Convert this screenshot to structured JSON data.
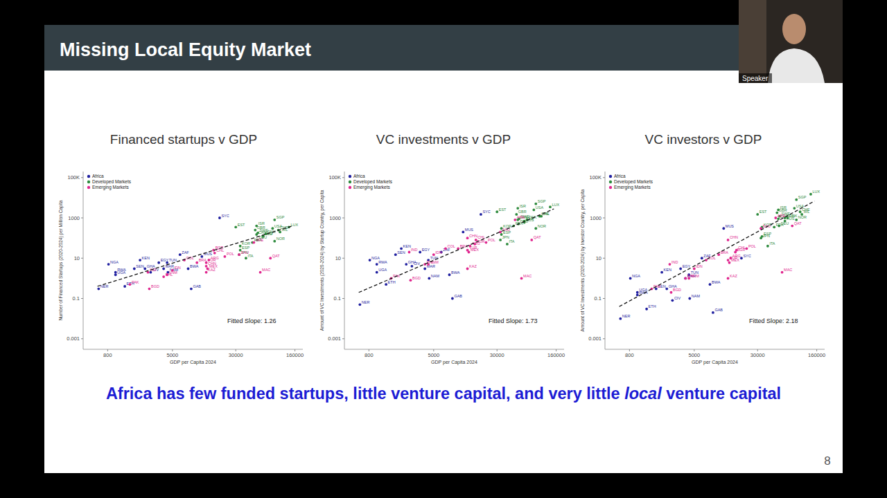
{
  "slide": {
    "title": "Missing Local Equity Market",
    "speaker_label": "Speaker",
    "page": 8,
    "takeaway": {
      "before": "Africa has few funded startups, little venture capital, and very little ",
      "emphasis": "local",
      "after": " venture capital"
    }
  },
  "chart_data": [
    {
      "type": "scatter",
      "title": "Financed startups v GDP",
      "x_label": "GDP per Capita 2024",
      "y_label": "Number of Financed Startups (2020-2024) per Million Capita",
      "log": true,
      "grid": false,
      "legend": "top-left",
      "xlim": [
        400,
        200000
      ],
      "xticks": [
        800,
        5000,
        30000,
        160000
      ],
      "ylim": [
        0.0003,
        200000
      ],
      "yticks": [
        0.001,
        0.1,
        10,
        1000,
        {
          "value": 100000,
          "label": "100K"
        }
      ],
      "annotation": "Fitted Slope: 1.26",
      "fit_line": {
        "x": [
          600,
          150000
        ],
        "y": [
          0.4,
          400
        ]
      },
      "series": [
        {
          "name": "Africa",
          "color": "#1f1fa0",
          "marker": "circle",
          "point_labels": [
            "NGA",
            "KEN",
            "SEN",
            "UGA",
            "RWA",
            "ETH",
            "NER",
            "GHA",
            "CIV",
            "MAR",
            "TUN",
            "EGY",
            "ZAF",
            "NAM",
            "MUS",
            "SYC",
            "BWA",
            "GAB"
          ],
          "x": [
            820,
            2000,
            1700,
            1000,
            1000,
            1300,
            620,
            2300,
            2700,
            3900,
            4300,
            3400,
            6200,
            4400,
            11500,
            19000,
            7800,
            8500
          ],
          "values": [
            5,
            8,
            3,
            1.5,
            2,
            0.4,
            0.3,
            3,
            2,
            3,
            6,
            6,
            15,
            2,
            12,
            1000,
            3,
            0.3
          ]
        },
        {
          "name": "Developed Markets",
          "color": "#2e8b3e",
          "marker": "circle",
          "point_labels": [
            "USA",
            "GBR",
            "DEU",
            "FRA",
            "JPN",
            "SGP",
            "CHE",
            "LUX",
            "ISR",
            "IRL",
            "NLD",
            "SWE",
            "NOR",
            "AUS",
            "CAN",
            "DNK",
            "EST",
            "ITA",
            "ESP",
            "KOR"
          ],
          "x": [
            85000,
            52000,
            55000,
            48000,
            33000,
            90000,
            100000,
            135000,
            54000,
            105000,
            65000,
            56000,
            90000,
            65000,
            54000,
            70000,
            30000,
            40000,
            34000,
            34000
          ],
          "values": [
            300,
            250,
            80,
            60,
            15,
            800,
            250,
            350,
            400,
            200,
            120,
            180,
            70,
            130,
            150,
            160,
            350,
            10,
            25,
            40
          ]
        },
        {
          "name": "Emerging Markets",
          "color": "#e0278f",
          "marker": "circle",
          "point_labels": [
            "IND",
            "CHN",
            "BRA",
            "MEX",
            "IDN",
            "VNM",
            "PAK",
            "BGD",
            "PHL",
            "ARE",
            "SAU",
            "ARG",
            "CHL",
            "COL",
            "TUR",
            "POL",
            "KAZ",
            "QAT",
            "MAC",
            "BGR"
          ],
          "x": [
            2500,
            13000,
            10000,
            13500,
            5000,
            4300,
            1500,
            2600,
            3900,
            50000,
            33000,
            14000,
            16500,
            7000,
            13000,
            22000,
            13000,
            80000,
            60000,
            16000
          ],
          "values": [
            2,
            4,
            6,
            3,
            2.5,
            1.5,
            0.5,
            0.3,
            1.2,
            60,
            15,
            8,
            18,
            8,
            6,
            12,
            2,
            10,
            2,
            25
          ]
        }
      ]
    },
    {
      "type": "scatter",
      "title": "VC investments v GDP",
      "x_label": "GDP per Capita 2024",
      "y_label": "Amount of VC Investments (2020-2024) by Startup Country, per Capita",
      "log": true,
      "grid": false,
      "legend": "top-left",
      "xlim": [
        400,
        200000
      ],
      "xticks": [
        800,
        5000,
        30000,
        160000
      ],
      "ylim": [
        0.0003,
        200000
      ],
      "yticks": [
        0.001,
        0.1,
        10,
        1000,
        {
          "value": 100000,
          "label": "100K"
        }
      ],
      "annotation": "Fitted Slope: 1.73",
      "fit_line": {
        "x": [
          600,
          150000
        ],
        "y": [
          0.2,
          2800
        ]
      },
      "series": [
        {
          "name": "Africa",
          "color": "#1f1fa0",
          "marker": "circle",
          "point_labels": [
            "NGA",
            "KEN",
            "SEN",
            "UGA",
            "RWA",
            "ETH",
            "NER",
            "GHA",
            "CIV",
            "MAR",
            "TUN",
            "EGY",
            "ZAF",
            "NAM",
            "MUS",
            "SYC",
            "BWA",
            "GAB"
          ],
          "x": [
            820,
            2000,
            1700,
            1000,
            1000,
            1300,
            620,
            2300,
            2700,
            3900,
            4300,
            3400,
            6200,
            4400,
            11500,
            19000,
            7800,
            8500
          ],
          "values": [
            8,
            30,
            15,
            2,
            5,
            0.5,
            0.05,
            5,
            4,
            3,
            8,
            20,
            20,
            1,
            200,
            1500,
            1.5,
            0.1
          ]
        },
        {
          "name": "Developed Markets",
          "color": "#2e8b3e",
          "marker": "circle",
          "point_labels": [
            "USA",
            "GBR",
            "DEU",
            "FRA",
            "JPN",
            "SGP",
            "CHE",
            "LUX",
            "ISR",
            "IRL",
            "NLD",
            "SWE",
            "NOR",
            "AUS",
            "CAN",
            "DNK",
            "EST",
            "ITA",
            "ESP",
            "KOR"
          ],
          "x": [
            85000,
            52000,
            55000,
            48000,
            33000,
            90000,
            100000,
            135000,
            54000,
            105000,
            65000,
            56000,
            90000,
            65000,
            54000,
            70000,
            30000,
            40000,
            34000,
            34000
          ],
          "values": [
            2500,
            1500,
            500,
            400,
            80,
            5000,
            1200,
            3500,
            3000,
            1200,
            700,
            900,
            300,
            600,
            800,
            800,
            2000,
            50,
            150,
            300
          ]
        },
        {
          "name": "Emerging Markets",
          "color": "#e0278f",
          "marker": "circle",
          "point_labels": [
            "IND",
            "CHN",
            "BRA",
            "MEX",
            "IDN",
            "VNM",
            "PAK",
            "BGD",
            "PHL",
            "ARE",
            "SAU",
            "ARG",
            "CHL",
            "COL",
            "TUR",
            "POL",
            "KAZ",
            "QAT",
            "MAC",
            "BGR"
          ],
          "x": [
            2500,
            13000,
            10000,
            13500,
            5000,
            4300,
            1500,
            2600,
            3900,
            50000,
            33000,
            14000,
            16500,
            7000,
            13000,
            22000,
            13000,
            80000,
            60000,
            16000
          ],
          "values": [
            20,
            100,
            30,
            20,
            15,
            5,
            1,
            0.8,
            5,
            800,
            200,
            40,
            80,
            30,
            25,
            60,
            3,
            80,
            1,
            50
          ]
        }
      ]
    },
    {
      "type": "scatter",
      "title": "VC investors v GDP",
      "x_label": "GDP per Capita 2024",
      "y_label": "Amount of VC Investments (2020-2024) by Investor Country, per Capita",
      "log": true,
      "grid": false,
      "legend": "top-left",
      "xlim": [
        400,
        200000
      ],
      "xticks": [
        800,
        5000,
        30000,
        160000
      ],
      "ylim": [
        0.0003,
        200000
      ],
      "yticks": [
        0.001,
        0.1,
        10,
        1000,
        {
          "value": 100000,
          "label": "100K"
        }
      ],
      "annotation": "Fitted Slope: 2.18",
      "fit_line": {
        "x": [
          600,
          150000
        ],
        "y": [
          0.04,
          6800
        ]
      },
      "series": [
        {
          "name": "Africa",
          "color": "#1f1fa0",
          "marker": "circle",
          "point_labels": [
            "NGA",
            "KEN",
            "SEN",
            "UGA",
            "RWA",
            "ETH",
            "NER",
            "GHA",
            "CIV",
            "MAR",
            "TUN",
            "EGY",
            "ZAF",
            "NAM",
            "MUS",
            "SYC",
            "BWA",
            "GAB"
          ],
          "x": [
            820,
            2000,
            1700,
            1000,
            1000,
            1300,
            620,
            2300,
            2700,
            3900,
            4300,
            3400,
            6200,
            4400,
            11500,
            19000,
            7800,
            8500
          ],
          "values": [
            1,
            2,
            0.3,
            0.2,
            0.15,
            0.03,
            0.01,
            0.3,
            0.08,
            1,
            1.5,
            3,
            10,
            0.1,
            300,
            10,
            0.5,
            0.02
          ]
        },
        {
          "name": "Developed Markets",
          "color": "#2e8b3e",
          "marker": "circle",
          "point_labels": [
            "USA",
            "GBR",
            "DEU",
            "FRA",
            "JPN",
            "SGP",
            "CHE",
            "LUX",
            "ISR",
            "IRL",
            "NLD",
            "SWE",
            "NOR",
            "AUS",
            "CAN",
            "DNK",
            "EST",
            "ITA",
            "ESP",
            "KOR"
          ],
          "x": [
            85000,
            52000,
            55000,
            48000,
            33000,
            90000,
            100000,
            135000,
            54000,
            105000,
            65000,
            56000,
            90000,
            65000,
            54000,
            70000,
            30000,
            40000,
            34000,
            34000
          ],
          "values": [
            3000,
            1800,
            400,
            350,
            100,
            8000,
            2000,
            15000,
            2500,
            1500,
            1000,
            1200,
            800,
            700,
            900,
            1000,
            1500,
            40,
            120,
            350
          ]
        },
        {
          "name": "Emerging Markets",
          "color": "#e0278f",
          "marker": "circle",
          "point_labels": [
            "IND",
            "CHN",
            "BRA",
            "MEX",
            "IDN",
            "VNM",
            "PAK",
            "BGD",
            "PHL",
            "ARE",
            "SAU",
            "ARG",
            "CHL",
            "COL",
            "TUR",
            "POL",
            "KAZ",
            "QAT",
            "MAC",
            "BGR"
          ],
          "x": [
            2500,
            13000,
            10000,
            13500,
            5000,
            4300,
            1500,
            2600,
            3900,
            50000,
            33000,
            14000,
            16500,
            7000,
            13000,
            22000,
            13000,
            80000,
            60000,
            16000
          ],
          "values": [
            5,
            80,
            15,
            6,
            3,
            1,
            0.3,
            0.2,
            1,
            1000,
            300,
            10,
            25,
            8,
            8,
            30,
            1,
            400,
            2,
            20
          ]
        }
      ]
    }
  ]
}
